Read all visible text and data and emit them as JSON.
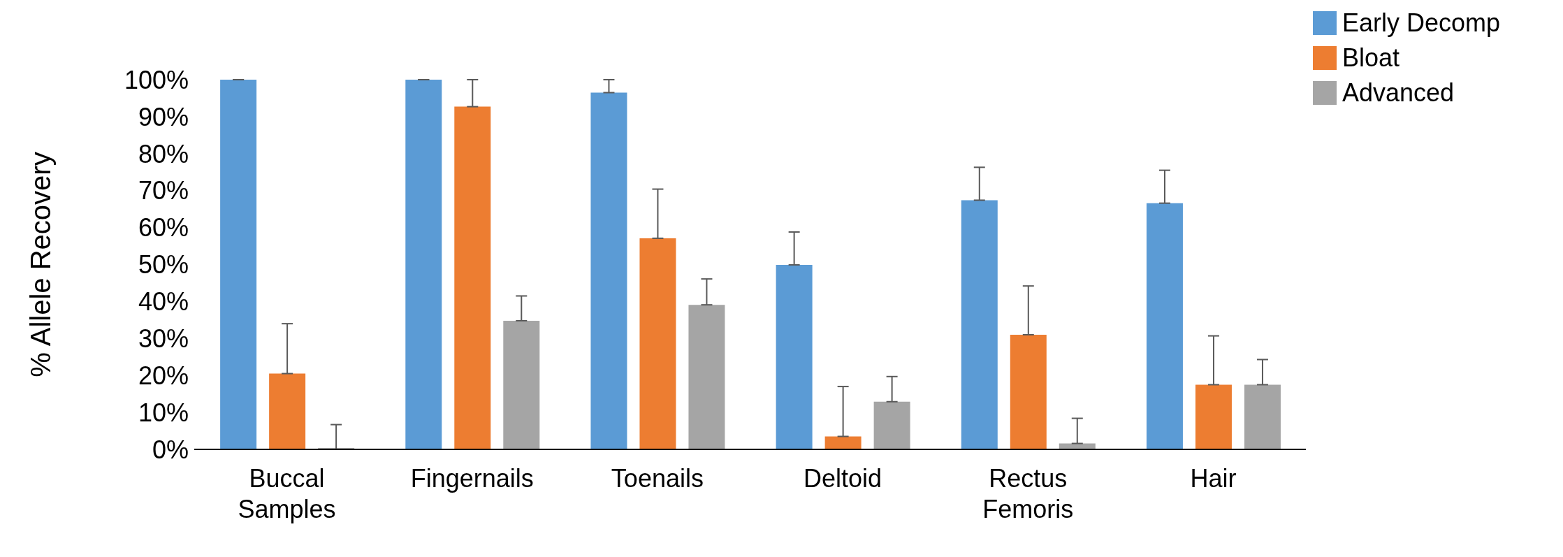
{
  "chart_data": {
    "type": "bar",
    "ylabel": "% Allele Recovery",
    "categories": [
      "Buccal Samples",
      "Fingernails",
      "Toenails",
      "Deltoid",
      "Rectus Femoris",
      "Hair"
    ],
    "series": [
      {
        "name": "Early Decomp",
        "color": "#5b9bd5",
        "values": [
          100,
          100,
          96.5,
          49.9,
          67.4,
          66.6
        ],
        "errors": [
          [
            100,
            100
          ],
          [
            100,
            100
          ],
          [
            96.5,
            100
          ],
          [
            49.9,
            58.8
          ],
          [
            67.4,
            76.3
          ],
          [
            66.6,
            75.5
          ]
        ]
      },
      {
        "name": "Bloat",
        "color": "#ed7d31",
        "values": [
          20.5,
          92.7,
          57.1,
          3.5,
          31,
          17.5
        ],
        "errors": [
          [
            20.5,
            34
          ],
          [
            92.7,
            100
          ],
          [
            57.1,
            70.4
          ],
          [
            3.5,
            17
          ],
          [
            31,
            44.2
          ],
          [
            17.5,
            30.7
          ]
        ]
      },
      {
        "name": "Advanced",
        "color": "#a5a5a5",
        "values": [
          0,
          34.8,
          39.1,
          12.9,
          1.6,
          17.5
        ],
        "errors": [
          [
            0,
            6.7
          ],
          [
            34.8,
            41.5
          ],
          [
            39.1,
            46.1
          ],
          [
            12.9,
            19.7
          ],
          [
            1.6,
            8.4
          ],
          [
            17.5,
            24.3
          ]
        ]
      }
    ],
    "ylim": [
      0,
      100
    ],
    "yticks": [
      {
        "value": 0,
        "label": "0%"
      },
      {
        "value": 10,
        "label": "10%"
      },
      {
        "value": 20,
        "label": "20%"
      },
      {
        "value": 30,
        "label": "30%"
      },
      {
        "value": 40,
        "label": "40%"
      },
      {
        "value": 50,
        "label": "50%"
      },
      {
        "value": 60,
        "label": "60%"
      },
      {
        "value": 70,
        "label": "70%"
      },
      {
        "value": 80,
        "label": "80%"
      },
      {
        "value": 90,
        "label": "90%"
      },
      {
        "value": 100,
        "label": "100%"
      }
    ],
    "grid": false,
    "legend": "top right"
  }
}
